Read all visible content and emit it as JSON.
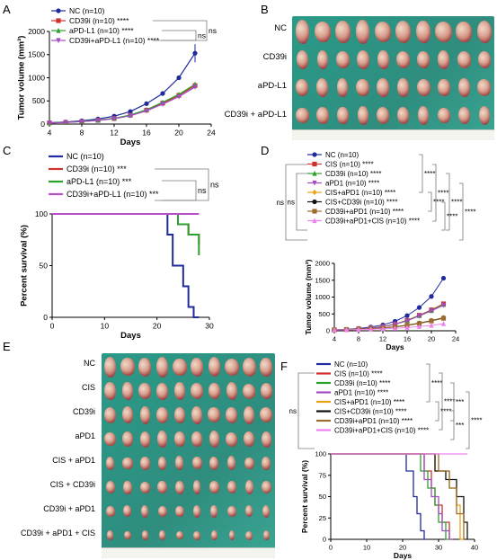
{
  "panel_letters": [
    "A",
    "B",
    "C",
    "D",
    "E",
    "F"
  ],
  "chart_data": [
    {
      "id": "A",
      "type": "line",
      "title": "",
      "xlabel": "Days",
      "ylabel": "Tumor volume (mm³)",
      "xlim": [
        4,
        24
      ],
      "ylim": [
        0,
        2000
      ],
      "xticks": [
        4,
        8,
        12,
        16,
        20,
        24
      ],
      "yticks": [
        0,
        500,
        1000,
        1500,
        2000
      ],
      "legend_position": "top-left",
      "x": [
        4,
        6,
        8,
        10,
        12,
        14,
        16,
        18,
        20,
        22
      ],
      "series": [
        {
          "name": "NC (n=10)",
          "color": "#1f2a9e",
          "marker": "circle",
          "values": [
            30,
            45,
            70,
            110,
            170,
            270,
            440,
            660,
            1000,
            1530
          ],
          "sig": ""
        },
        {
          "name": "CD39i (n=10)",
          "color": "#d0312d",
          "marker": "square",
          "values": [
            25,
            35,
            55,
            80,
            120,
            190,
            300,
            450,
            620,
            830
          ],
          "sig": "****"
        },
        {
          "name": "aPD-L1 (n=10)",
          "color": "#2ca02c",
          "marker": "triangle",
          "values": [
            25,
            36,
            58,
            85,
            125,
            195,
            310,
            470,
            640,
            860
          ],
          "sig": "****"
        },
        {
          "name": "CD39i+aPD-L1 (n=10)",
          "color": "#a24bc2",
          "marker": "triangle-down",
          "values": [
            24,
            34,
            52,
            78,
            115,
            180,
            285,
            430,
            590,
            800
          ],
          "sig": "****"
        }
      ],
      "brackets": [
        "ns",
        "ns"
      ]
    },
    {
      "id": "C",
      "type": "line",
      "title": "",
      "xlabel": "Days",
      "ylabel": "Percent survival (%)",
      "xlim": [
        0,
        30
      ],
      "ylim": [
        0,
        100
      ],
      "xticks": [
        0,
        10,
        20,
        30
      ],
      "yticks": [
        0,
        50,
        100
      ],
      "legend_position": "top-left",
      "series": [
        {
          "name": "NC (n=10)",
          "color": "#1f2a9e",
          "steps": [
            [
              0,
              100
            ],
            [
              22,
              100
            ],
            [
              22,
              80
            ],
            [
              23,
              80
            ],
            [
              23,
              50
            ],
            [
              25,
              50
            ],
            [
              25,
              30
            ],
            [
              26,
              30
            ],
            [
              26,
              10
            ],
            [
              27,
              10
            ],
            [
              27,
              0
            ],
            [
              28,
              0
            ]
          ],
          "sig": ""
        },
        {
          "name": "CD39i (n=10) ***",
          "color": "#d0312d",
          "steps": [
            [
              0,
              100
            ],
            [
              24,
              100
            ],
            [
              24,
              90
            ],
            [
              26,
              90
            ],
            [
              26,
              80
            ],
            [
              28,
              80
            ],
            [
              28,
              70
            ]
          ],
          "sig": "***"
        },
        {
          "name": "aPD-L1 (n=10) ***",
          "color": "#2ca02c",
          "steps": [
            [
              0,
              100
            ],
            [
              24,
              100
            ],
            [
              24,
              90
            ],
            [
              26,
              90
            ],
            [
              26,
              80
            ],
            [
              28,
              80
            ],
            [
              28,
              60
            ]
          ],
          "sig": "***"
        },
        {
          "name": "CD39i+aPD-L1 (n=10) ***",
          "color": "#b84ec8",
          "steps": [
            [
              0,
              100
            ],
            [
              28,
              100
            ]
          ],
          "sig": "***"
        }
      ],
      "brackets": [
        "ns",
        "ns"
      ]
    },
    {
      "id": "D",
      "type": "line",
      "title": "",
      "xlabel": "Days",
      "ylabel": "Tumor volume (mm³)",
      "xlim": [
        4,
        24
      ],
      "ylim": [
        0,
        2000
      ],
      "xticks": [
        4,
        8,
        12,
        16,
        20,
        24
      ],
      "yticks": [
        0,
        500,
        1000,
        1500,
        2000
      ],
      "legend_position": "top",
      "x": [
        4,
        6,
        8,
        10,
        12,
        14,
        16,
        18,
        20,
        22
      ],
      "series": [
        {
          "name": "NC (n=10)",
          "color": "#1f2a9e",
          "marker": "circle",
          "values": [
            30,
            45,
            70,
            110,
            175,
            280,
            450,
            690,
            1020,
            1560
          ],
          "sig": ""
        },
        {
          "name": "CIS (n=10)",
          "color": "#d0312d",
          "marker": "square",
          "values": [
            28,
            38,
            58,
            85,
            125,
            200,
            310,
            460,
            620,
            800
          ],
          "sig": "****"
        },
        {
          "name": "CD39i (n=10)",
          "color": "#2ca02c",
          "marker": "triangle",
          "values": [
            27,
            37,
            56,
            83,
            122,
            195,
            300,
            450,
            600,
            780
          ],
          "sig": "****"
        },
        {
          "name": "aPD1 (n=10)",
          "color": "#a24bc2",
          "marker": "triangle-down",
          "values": [
            27,
            36,
            55,
            82,
            120,
            190,
            295,
            440,
            590,
            760
          ],
          "sig": "****"
        },
        {
          "name": "CIS+aPD1 (n=10)",
          "color": "#e8a317",
          "marker": "diamond",
          "values": [
            25,
            32,
            45,
            62,
            85,
            120,
            170,
            230,
            300,
            390
          ],
          "sig": "****"
        },
        {
          "name": "CIS+CD39i (n=10)",
          "color": "#111111",
          "marker": "circle",
          "values": [
            25,
            31,
            44,
            60,
            82,
            118,
            165,
            225,
            300,
            380
          ],
          "sig": "****"
        },
        {
          "name": "CD39i+aPD1 (n=10)",
          "color": "#9c6b30",
          "marker": "square",
          "values": [
            25,
            31,
            43,
            58,
            80,
            112,
            158,
            215,
            290,
            370
          ],
          "sig": "****"
        },
        {
          "name": "CD39i+aPD1+CIS (n=10)",
          "color": "#ee82ee",
          "marker": "triangle",
          "values": [
            24,
            28,
            36,
            45,
            58,
            75,
            98,
            125,
            160,
            210
          ],
          "sig": "****"
        }
      ],
      "brackets": [
        "ns",
        "****",
        "ns",
        "****",
        "****",
        "****",
        "****",
        "****"
      ]
    },
    {
      "id": "F",
      "type": "line",
      "title": "",
      "xlabel": "Days",
      "ylabel": "Percent survival (%)",
      "xlim": [
        0,
        40
      ],
      "ylim": [
        0,
        100
      ],
      "xticks": [
        0,
        10,
        20,
        30,
        40
      ],
      "yticks": [
        0,
        25,
        50,
        75,
        100
      ],
      "legend_position": "top",
      "series": [
        {
          "name": "NC (n=10)",
          "color": "#1f2a9e",
          "steps": [
            [
              0,
              100
            ],
            [
              21,
              100
            ],
            [
              21,
              80
            ],
            [
              23,
              80
            ],
            [
              23,
              50
            ],
            [
              24,
              50
            ],
            [
              24,
              30
            ],
            [
              25,
              30
            ],
            [
              25,
              10
            ],
            [
              26,
              10
            ],
            [
              26,
              0
            ],
            [
              27,
              0
            ]
          ],
          "sig": ""
        },
        {
          "name": "CIS (n=10)",
          "color": "#d0312d",
          "steps": [
            [
              0,
              100
            ],
            [
              26,
              100
            ],
            [
              26,
              80
            ],
            [
              28,
              80
            ],
            [
              28,
              60
            ],
            [
              29,
              60
            ],
            [
              29,
              40
            ],
            [
              31,
              40
            ],
            [
              31,
              20
            ],
            [
              33,
              20
            ],
            [
              33,
              0
            ],
            [
              34,
              0
            ]
          ],
          "sig": "****"
        },
        {
          "name": "CD39i (n=10)",
          "color": "#2ca02c",
          "steps": [
            [
              0,
              100
            ],
            [
              25,
              100
            ],
            [
              25,
              80
            ],
            [
              27,
              80
            ],
            [
              27,
              60
            ],
            [
              29,
              60
            ],
            [
              29,
              40
            ],
            [
              30,
              40
            ],
            [
              30,
              20
            ],
            [
              32,
              20
            ],
            [
              32,
              0
            ],
            [
              33,
              0
            ]
          ],
          "sig": "****"
        },
        {
          "name": "aPD1 (n=10)",
          "color": "#a24bc2",
          "steps": [
            [
              0,
              100
            ],
            [
              26,
              100
            ],
            [
              26,
              70
            ],
            [
              28,
              70
            ],
            [
              28,
              50
            ],
            [
              30,
              50
            ],
            [
              30,
              30
            ],
            [
              31,
              30
            ],
            [
              31,
              10
            ],
            [
              33,
              10
            ],
            [
              33,
              0
            ],
            [
              34,
              0
            ]
          ],
          "sig": "****"
        },
        {
          "name": "CIS+aPD1 (n=10)",
          "color": "#e8a317",
          "steps": [
            [
              0,
              100
            ],
            [
              29,
              100
            ],
            [
              29,
              80
            ],
            [
              33,
              80
            ],
            [
              33,
              60
            ],
            [
              35,
              60
            ],
            [
              35,
              40
            ],
            [
              36,
              40
            ],
            [
              36,
              0
            ],
            [
              37,
              0
            ]
          ],
          "sig": "****"
        },
        {
          "name": "CIS+CD39i (n=10)",
          "color": "#111111",
          "steps": [
            [
              0,
              100
            ],
            [
              29,
              100
            ],
            [
              29,
              80
            ],
            [
              32,
              80
            ],
            [
              32,
              70
            ],
            [
              35,
              70
            ],
            [
              35,
              50
            ],
            [
              37,
              50
            ],
            [
              37,
              20
            ],
            [
              38,
              20
            ],
            [
              38,
              0
            ]
          ],
          "sig": "****"
        },
        {
          "name": "CD39i+aPD1 (n=10)",
          "color": "#9c6b30",
          "steps": [
            [
              0,
              100
            ],
            [
              30,
              100
            ],
            [
              30,
              80
            ],
            [
              33,
              80
            ],
            [
              33,
              60
            ],
            [
              35,
              60
            ],
            [
              35,
              30
            ],
            [
              37,
              30
            ],
            [
              37,
              0
            ]
          ],
          "sig": "****"
        },
        {
          "name": "CD39i+aPD1+CIS (n=10)",
          "color": "#ee82ee",
          "steps": [
            [
              0,
              100
            ],
            [
              38,
              100
            ]
          ],
          "sig": "****"
        }
      ],
      "brackets": [
        "ns",
        "****",
        "****",
        "***",
        "****",
        "***",
        "****"
      ]
    }
  ],
  "photo_B": {
    "row_labels": [
      "NC",
      "CD39i",
      "aPD-L1",
      "CD39i + aPD-L1"
    ],
    "tumors_per_row": 10,
    "background_color": "#2a9a88",
    "tumor_sizes": [
      1.0,
      0.82,
      0.82,
      0.78
    ]
  },
  "photo_E": {
    "row_labels": [
      "NC",
      "CIS",
      "CD39i",
      "aPD1",
      "CIS + aPD1",
      "CIS + CD39i",
      "CD39i + aPD1",
      "CD39i + aPD1 + CIS"
    ],
    "tumors_per_row": 10,
    "background_color": "#2a9a88",
    "tumor_sizes": [
      1.0,
      0.9,
      0.88,
      0.82,
      0.7,
      0.68,
      0.62,
      0.5
    ]
  }
}
